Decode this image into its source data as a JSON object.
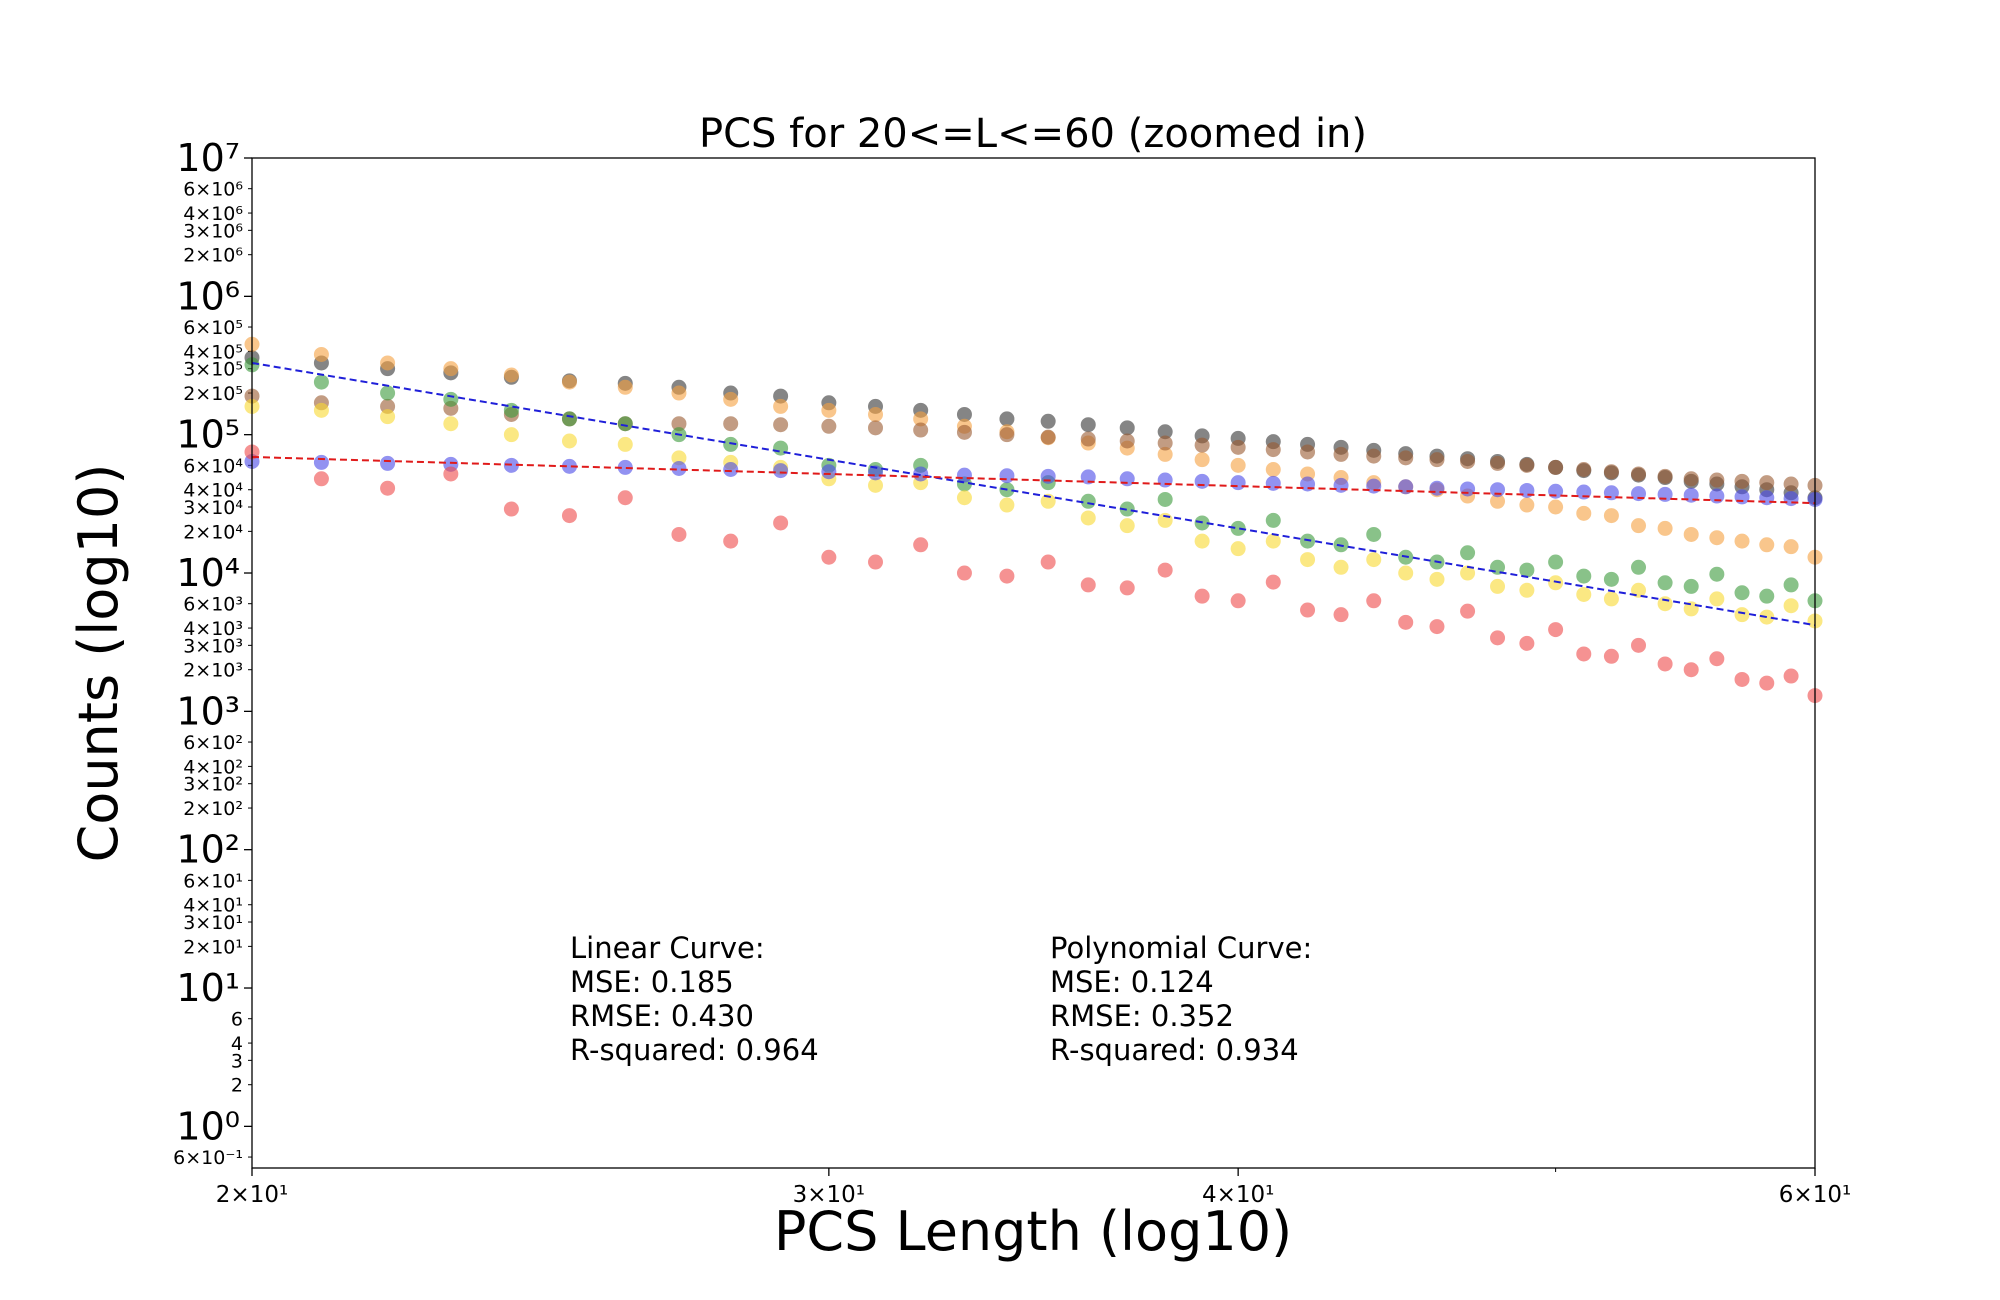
{
  "chart_data": {
    "type": "scatter",
    "title": "PCS for 20<=L<=60 (zoomed in)",
    "xlabel": "PCS Length (log10)",
    "ylabel": "Counts (log10)",
    "xscale": "log",
    "yscale": "log",
    "xlim": [
      20,
      60
    ],
    "ylim": [
      0.5,
      10000000
    ],
    "x_ticks": [
      {
        "value": 20,
        "label": "2×10¹"
      },
      {
        "value": 30,
        "label": "3×10¹"
      },
      {
        "value": 40,
        "label": "4×10¹"
      },
      {
        "value": 60,
        "label": "6×10¹"
      }
    ],
    "x_minor_ticks": [
      50
    ],
    "y_major_ticks": [
      {
        "value": 1,
        "label": "10⁰"
      },
      {
        "value": 10,
        "label": "10¹"
      },
      {
        "value": 100,
        "label": "10²"
      },
      {
        "value": 1000,
        "label": "10³"
      },
      {
        "value": 10000,
        "label": "10⁴"
      },
      {
        "value": 100000,
        "label": "10⁵"
      },
      {
        "value": 1000000,
        "label": "10⁶"
      },
      {
        "value": 10000000,
        "label": "10⁷"
      }
    ],
    "y_minor_ticks": [
      {
        "value": 0.6,
        "label": "6×10⁻¹"
      },
      {
        "value": 2,
        "label": "2"
      },
      {
        "value": 3,
        "label": "3"
      },
      {
        "value": 4,
        "label": "4"
      },
      {
        "value": 6,
        "label": "6"
      },
      {
        "value": 20,
        "label": "2×10¹"
      },
      {
        "value": 30,
        "label": "3×10¹"
      },
      {
        "value": 40,
        "label": "4×10¹"
      },
      {
        "value": 60,
        "label": "6×10¹"
      },
      {
        "value": 200,
        "label": "2×10²"
      },
      {
        "value": 300,
        "label": "3×10²"
      },
      {
        "value": 400,
        "label": "4×10²"
      },
      {
        "value": 600,
        "label": "6×10²"
      },
      {
        "value": 2000,
        "label": "2×10³"
      },
      {
        "value": 3000,
        "label": "3×10³"
      },
      {
        "value": 4000,
        "label": "4×10³"
      },
      {
        "value": 6000,
        "label": "6×10³"
      },
      {
        "value": 20000,
        "label": "2×10⁴"
      },
      {
        "value": 30000,
        "label": "3×10⁴"
      },
      {
        "value": 40000,
        "label": "4×10⁴"
      },
      {
        "value": 60000,
        "label": "6×10⁴"
      },
      {
        "value": 200000,
        "label": "2×10⁵"
      },
      {
        "value": 300000,
        "label": "3×10⁵"
      },
      {
        "value": 400000,
        "label": "4×10⁵"
      },
      {
        "value": 600000,
        "label": "6×10⁵"
      },
      {
        "value": 2000000,
        "label": "2×10⁶"
      },
      {
        "value": 3000000,
        "label": "3×10⁶"
      },
      {
        "value": 4000000,
        "label": "4×10⁶"
      },
      {
        "value": 6000000,
        "label": "6×10⁶"
      }
    ],
    "x": [
      20,
      21,
      22,
      23,
      24,
      25,
      26,
      27,
      28,
      29,
      30,
      31,
      32,
      33,
      34,
      35,
      36,
      37,
      38,
      39,
      40,
      41,
      42,
      43,
      44,
      45,
      46,
      47,
      48,
      49,
      50,
      51,
      52,
      53,
      54,
      55,
      56,
      57,
      58,
      59,
      60
    ],
    "series": [
      {
        "color": "#333333",
        "values": [
          360000,
          330000,
          300000,
          280000,
          260000,
          245000,
          235000,
          220000,
          200000,
          190000,
          170000,
          160000,
          150000,
          140000,
          130000,
          125000,
          118000,
          112000,
          105000,
          98000,
          94000,
          89000,
          85000,
          81000,
          77000,
          73000,
          70000,
          67000,
          64000,
          61000,
          58000,
          55000,
          53000,
          51000,
          49000,
          46000,
          44000,
          42000,
          40000,
          38000,
          35000
        ]
      },
      {
        "color": "#f5a040",
        "values": [
          450000,
          380000,
          330000,
          300000,
          270000,
          240000,
          220000,
          200000,
          180000,
          160000,
          150000,
          140000,
          130000,
          115000,
          105000,
          95000,
          87000,
          80000,
          72000,
          66000,
          60000,
          56000,
          52000,
          49000,
          45000,
          42000,
          40000,
          36000,
          33000,
          31000,
          30000,
          27000,
          26000,
          22000,
          21000,
          19000,
          18000,
          17000,
          16000,
          15500,
          13000
        ]
      },
      {
        "color": "#9a5a30",
        "values": [
          190000,
          170000,
          160000,
          155000,
          140000,
          130000,
          120000,
          120000,
          120000,
          118000,
          115000,
          112000,
          108000,
          104000,
          100000,
          96000,
          93000,
          90000,
          87000,
          84000,
          81000,
          78000,
          75000,
          72000,
          70000,
          68000,
          66000,
          64000,
          62000,
          60000,
          58000,
          56000,
          54000,
          52000,
          50000,
          48000,
          47000,
          46000,
          45000,
          44000,
          43000
        ]
      },
      {
        "color": "#3a9a3a",
        "values": [
          320000,
          240000,
          200000,
          180000,
          150000,
          130000,
          120000,
          100000,
          85000,
          80000,
          60000,
          56000,
          60000,
          44000,
          40000,
          45000,
          33000,
          29000,
          34000,
          23000,
          21000,
          24000,
          17000,
          16000,
          19000,
          13000,
          12000,
          14000,
          11000,
          10500,
          12000,
          9500,
          9000,
          11000,
          8500,
          8000,
          9800,
          7200,
          6800,
          8200,
          6300
        ]
      },
      {
        "color": "#f8d830",
        "values": [
          160000,
          150000,
          135000,
          120000,
          100000,
          90000,
          85000,
          68000,
          63000,
          58000,
          48000,
          43000,
          45000,
          35000,
          31000,
          33000,
          25000,
          22000,
          24000,
          17000,
          15000,
          17000,
          12500,
          11000,
          12500,
          10000,
          9000,
          10000,
          8000,
          7500,
          8500,
          7000,
          6500,
          7500,
          6000,
          5500,
          6500,
          5000,
          4800,
          5800,
          4500
        ]
      },
      {
        "color": "#4a4ae8",
        "values": [
          64000,
          63000,
          62000,
          61000,
          60000,
          59000,
          58000,
          57000,
          56000,
          55000,
          54000,
          53000,
          52000,
          51000,
          50500,
          50000,
          49500,
          48000,
          47000,
          46000,
          45000,
          44500,
          44000,
          43000,
          42500,
          42000,
          41000,
          40500,
          40000,
          39500,
          39000,
          38500,
          38000,
          37500,
          37000,
          36500,
          36000,
          35500,
          35000,
          34500,
          34000
        ]
      },
      {
        "color": "#ee4a4a",
        "values": [
          75000,
          48000,
          41000,
          52000,
          29000,
          26000,
          35000,
          19000,
          17000,
          23000,
          13000,
          12000,
          16000,
          10000,
          9500,
          12000,
          8200,
          7800,
          10500,
          6800,
          6300,
          8600,
          5400,
          5000,
          6300,
          4400,
          4100,
          5300,
          3400,
          3100,
          3900,
          2600,
          2500,
          3000,
          2200,
          2000,
          2400,
          1700,
          1600,
          1800,
          1300
        ]
      }
    ],
    "fit_lines": [
      {
        "color": "#1f1fd9",
        "x": [
          20,
          60
        ],
        "y": [
          330000,
          4200
        ]
      },
      {
        "color": "#e01a1a",
        "x": [
          20,
          60
        ],
        "y": [
          69000,
          32000
        ]
      }
    ],
    "annotations": [
      {
        "lines": [
          "Linear Curve:",
          "MSE: 0.185",
          "RMSE: 0.430",
          "R-squared: 0.964"
        ]
      },
      {
        "lines": [
          "Polynomial Curve:",
          "MSE: 0.124",
          "RMSE: 0.352",
          "R-squared: 0.934"
        ]
      }
    ],
    "grid": false
  }
}
